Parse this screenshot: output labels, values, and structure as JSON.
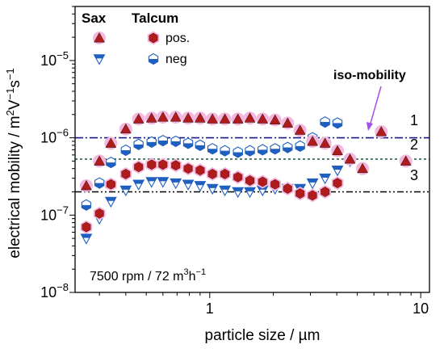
{
  "chart_data": {
    "type": "scatter",
    "xlabel": "particle size / µm",
    "ylabel_main": "electrical mobility / m",
    "ylabel_sup1": "2",
    "ylabel_mid1": "V",
    "ylabel_sup2": "−1",
    "ylabel_mid2": "s",
    "ylabel_sup3": "−1",
    "x_scale": "log",
    "y_scale": "log",
    "xlim": [
      0.23,
      11
    ],
    "ylim": [
      1e-08,
      5e-05
    ],
    "x_ticks": [
      1,
      10
    ],
    "x_tick_labels": [
      "1",
      "10"
    ],
    "y_ticks": [
      1e-08,
      1e-07,
      1e-06,
      1e-05
    ],
    "y_tick_labels": [
      {
        "base": "10",
        "exp": "−8"
      },
      {
        "base": "10",
        "exp": "−7"
      },
      {
        "base": "10",
        "exp": "−6"
      },
      {
        "base": "10",
        "exp": "−5"
      }
    ],
    "legend": {
      "placement": "top-left",
      "header_sax": "Sax",
      "header_talcum": "Talcum",
      "label_pos": "pos.",
      "label_neg": "neg"
    },
    "annotations": {
      "condition": "7500 rpm / 72 m",
      "condition_sup": "3",
      "condition_tail": "h",
      "condition_tail_sup": "−1",
      "iso_mobility": "iso-mobility",
      "line_labels": [
        "1",
        "2",
        "3"
      ]
    },
    "colors": {
      "sax_pos": "#b01c1c",
      "sax_neg": "#1f5fbf",
      "talcum_pos": "#b01c1c",
      "talcum_neg": "#1f5fbf",
      "halo": "#f4b8de",
      "line1": "#1a1a8c",
      "line2": "#1e6b4a",
      "line3": "#000000",
      "arrow": "#a24ef0"
    },
    "reference_lines": [
      {
        "label": "1",
        "y": 1e-06,
        "style": "dash-dot"
      },
      {
        "label": "2",
        "y": 5.3e-07,
        "style": "dotted"
      },
      {
        "label": "3",
        "y": 2e-07,
        "style": "dash-dot-dot"
      }
    ],
    "series": [
      {
        "name": "Sax pos.",
        "marker": "triangle-up-filled",
        "x": [
          0.26,
          0.3,
          0.34,
          0.4,
          0.46,
          0.53,
          0.6,
          0.69,
          0.79,
          0.9,
          1.03,
          1.18,
          1.36,
          1.55,
          1.78,
          2.04,
          2.34,
          2.68,
          3.07,
          3.52,
          4.03,
          4.62,
          5.3,
          6.5,
          8.5
        ],
        "y": [
          2.4e-07,
          5e-07,
          8.5e-07,
          1.3e-06,
          1.75e-06,
          1.8e-06,
          1.85e-06,
          1.85e-06,
          1.8e-06,
          1.8e-06,
          1.75e-06,
          1.75e-06,
          1.75e-06,
          1.8e-06,
          1.75e-06,
          1.7e-06,
          1.55e-06,
          1.25e-06,
          9e-07,
          8.5e-07,
          6.8e-07,
          5.3e-07,
          4e-07,
          1.2e-06,
          5e-07
        ]
      },
      {
        "name": "Sax neg",
        "marker": "triangle-down-half",
        "x": [
          0.26,
          0.3,
          0.34,
          0.4,
          0.46,
          0.53,
          0.6,
          0.69,
          0.79,
          0.9,
          1.03,
          1.18,
          1.36,
          1.55,
          1.78,
          2.04,
          2.34,
          2.68,
          3.07,
          3.52,
          4.03,
          4.62
        ],
        "y": [
          5e-08,
          9e-08,
          1.5e-07,
          2.1e-07,
          2.5e-07,
          2.7e-07,
          2.7e-07,
          2.6e-07,
          2.5e-07,
          2.4e-07,
          2.2e-07,
          2.1e-07,
          2e-07,
          2e-07,
          2.1e-07,
          2.2e-07,
          2.2e-07,
          2.2e-07,
          2.6e-07,
          3e-07,
          3.8e-07,
          5e-07
        ]
      },
      {
        "name": "Talcum pos.",
        "marker": "hexagon-filled",
        "x": [
          0.26,
          0.3,
          0.34,
          0.4,
          0.46,
          0.53,
          0.6,
          0.69,
          0.79,
          0.9,
          1.03,
          1.18,
          1.36,
          1.55,
          1.78,
          2.04,
          2.34,
          2.68,
          3.07,
          3.52,
          4.03
        ],
        "y": [
          7e-08,
          1.05e-07,
          2.5e-07,
          3.4e-07,
          4.2e-07,
          4.5e-07,
          4.5e-07,
          4.4e-07,
          4e-07,
          3.8e-07,
          3.4e-07,
          3.4e-07,
          3.1e-07,
          2.8e-07,
          2.7e-07,
          2.5e-07,
          2.2e-07,
          1.9e-07,
          1.8e-07,
          2e-07,
          2.6e-07
        ]
      },
      {
        "name": "Talcum neg",
        "marker": "hexagon-half",
        "x": [
          0.26,
          0.3,
          0.34,
          0.4,
          0.46,
          0.53,
          0.6,
          0.69,
          0.79,
          0.9,
          1.03,
          1.18,
          1.36,
          1.55,
          1.78,
          2.04,
          2.34,
          2.68,
          3.07,
          3.52,
          4.03
        ],
        "y": [
          1.35e-07,
          2.6e-07,
          4.8e-07,
          6.9e-07,
          8.2e-07,
          8.8e-07,
          9.2e-07,
          9e-07,
          8.5e-07,
          8e-07,
          7.2e-07,
          6.8e-07,
          6.5e-07,
          6.8e-07,
          7e-07,
          7.2e-07,
          7.5e-07,
          7.8e-07,
          1e-06,
          1.6e-06,
          1.55e-06
        ]
      }
    ]
  }
}
